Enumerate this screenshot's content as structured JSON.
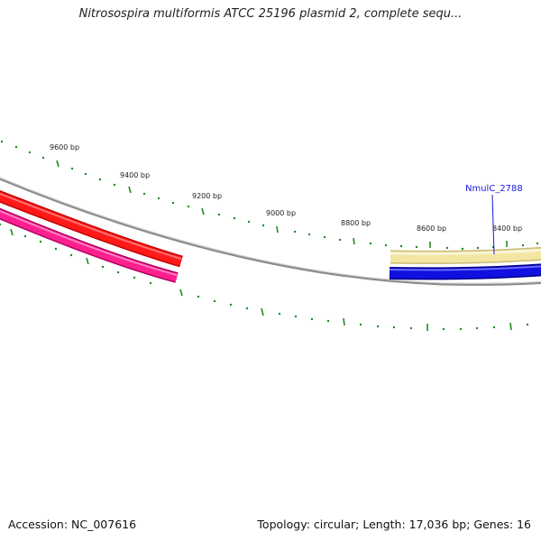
{
  "title": "Nitrosospira multiformis ATCC 25196 plasmid 2, complete sequ...",
  "footer": {
    "accession": "Accession: NC_007616",
    "summary": "Topology: circular; Length: 17,036 bp; Genes: 16"
  },
  "map": {
    "position_labels": [
      "9600 bp",
      "9400 bp",
      "9200 bp",
      "9000 bp",
      "8800 bp",
      "8600 bp",
      "8400 bp"
    ],
    "gene_label": "NmulC_2788",
    "colors": {
      "backbone": "#8a8a8a",
      "ticks": "#1f8a1f",
      "gene_red": "#ff1a1a",
      "gene_pink": "#ff2090",
      "gene_yellow": "#f2e6a2",
      "gene_blue": "#1010e0",
      "label_blue": "#1a1ae0"
    }
  }
}
